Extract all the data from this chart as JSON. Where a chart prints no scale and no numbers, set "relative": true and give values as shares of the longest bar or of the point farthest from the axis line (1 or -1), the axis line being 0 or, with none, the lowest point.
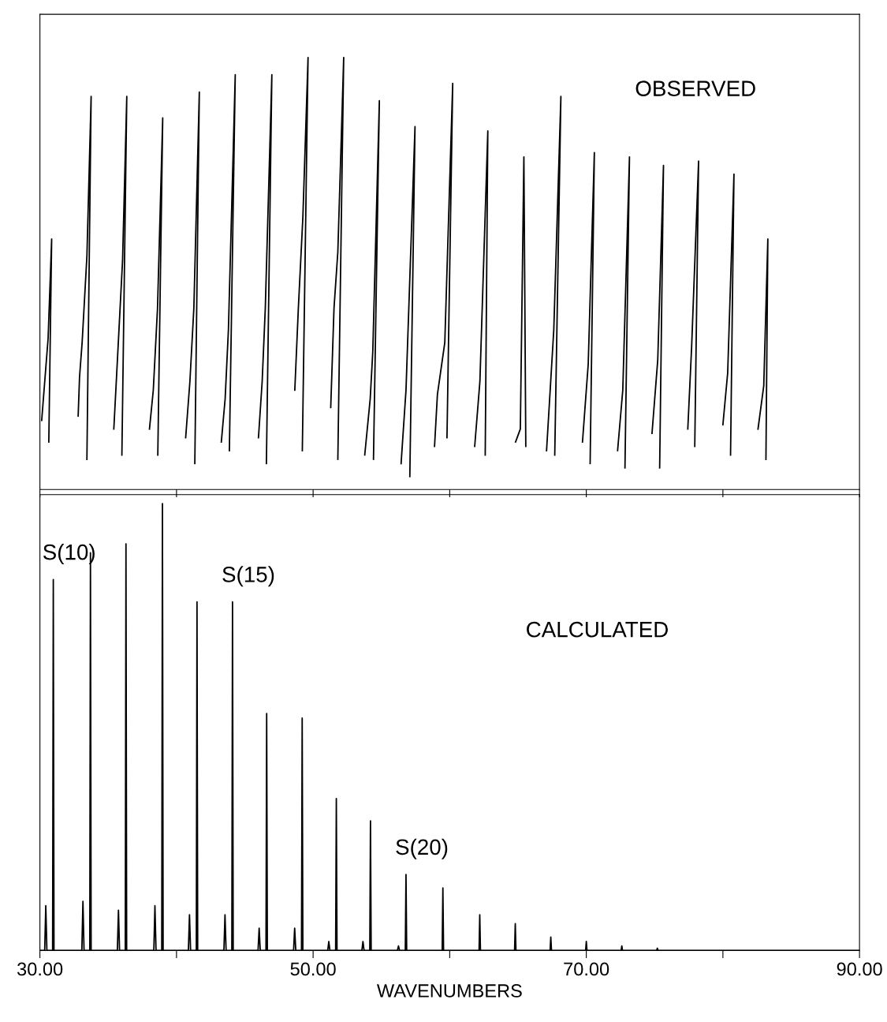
{
  "chart_data": [
    {
      "type": "line",
      "relative": true,
      "xlim": [
        30,
        90
      ],
      "xticks": [
        {
          "value": 30,
          "label": null
        },
        {
          "value": 40,
          "label": null
        },
        {
          "value": 50,
          "label": null
        },
        {
          "value": 60,
          "label": null
        },
        {
          "value": 70,
          "label": null
        },
        {
          "value": 80,
          "label": null
        },
        {
          "value": 90,
          "label": null
        }
      ],
      "tick_labels": false,
      "grid": false,
      "annotations": [
        "OBSERVED"
      ],
      "series": [
        {
          "color": "#000000",
          "x": [
            30.13,
            30.6,
            30.86,
            30.65
          ],
          "values": [
            0.16,
            0.35,
            0.58,
            0.11
          ]
        },
        {
          "color": "#000000",
          "x": [
            32.8,
            32.9,
            33.09,
            33.44,
            33.75,
            33.44
          ],
          "values": [
            0.17,
            0.26,
            0.34,
            0.54,
            0.91,
            0.07
          ]
        },
        {
          "color": "#000000",
          "x": [
            35.41,
            35.69,
            36.05,
            36.36,
            36.0
          ],
          "values": [
            0.14,
            0.31,
            0.53,
            0.91,
            0.08
          ]
        },
        {
          "color": "#000000",
          "x": [
            38.02,
            38.3,
            38.61,
            38.99,
            38.63
          ],
          "values": [
            0.14,
            0.23,
            0.42,
            0.86,
            0.08
          ]
        },
        {
          "color": "#000000",
          "x": [
            40.67,
            40.98,
            41.27,
            41.67,
            41.34
          ],
          "values": [
            0.12,
            0.25,
            0.42,
            0.92,
            0.06
          ]
        },
        {
          "color": "#000000",
          "x": [
            43.28,
            43.56,
            43.8,
            44.3,
            43.87
          ],
          "values": [
            0.11,
            0.21,
            0.37,
            0.96,
            0.09
          ]
        },
        {
          "color": "#000000",
          "x": [
            46.0,
            46.27,
            46.5,
            46.98,
            46.58
          ],
          "values": [
            0.12,
            0.25,
            0.42,
            0.96,
            0.06
          ]
        },
        {
          "color": "#000000",
          "x": [
            48.66,
            48.92,
            49.25,
            49.63,
            49.21
          ],
          "values": [
            0.23,
            0.42,
            0.63,
            1.0,
            0.09
          ]
        },
        {
          "color": "#000000",
          "x": [
            51.29,
            51.53,
            51.81,
            52.24,
            51.81
          ],
          "values": [
            0.19,
            0.42,
            0.55,
            1.0,
            0.07
          ]
        },
        {
          "color": "#000000",
          "x": [
            53.78,
            54.18,
            54.37,
            54.85,
            54.42
          ],
          "values": [
            0.08,
            0.21,
            0.32,
            0.9,
            0.07
          ]
        },
        {
          "color": "#000000",
          "x": [
            56.44,
            56.8,
            57.46,
            57.08
          ],
          "values": [
            0.06,
            0.23,
            0.84,
            0.03
          ]
        },
        {
          "color": "#000000",
          "x": [
            58.89,
            59.1,
            59.64,
            60.22,
            59.8
          ],
          "values": [
            0.1,
            0.22,
            0.34,
            0.94,
            0.12
          ]
        },
        {
          "color": "#000000",
          "x": [
            61.83,
            62.21,
            62.79,
            62.6
          ],
          "values": [
            0.1,
            0.25,
            0.83,
            0.08
          ]
        },
        {
          "color": "#000000",
          "x": [
            64.82,
            65.17,
            65.43,
            65.57
          ],
          "values": [
            0.11,
            0.14,
            0.77,
            0.1
          ]
        },
        {
          "color": "#000000",
          "x": [
            67.09,
            67.62,
            68.14,
            67.69
          ],
          "values": [
            0.09,
            0.37,
            0.91,
            0.08
          ]
        },
        {
          "color": "#000000",
          "x": [
            69.72,
            70.14,
            70.59,
            70.28
          ],
          "values": [
            0.11,
            0.29,
            0.78,
            0.06
          ]
        },
        {
          "color": "#000000",
          "x": [
            72.29,
            72.67,
            73.16,
            72.83
          ],
          "values": [
            0.09,
            0.23,
            0.77,
            0.05
          ]
        },
        {
          "color": "#000000",
          "x": [
            74.81,
            75.23,
            75.65,
            75.37
          ],
          "values": [
            0.13,
            0.3,
            0.75,
            0.05
          ]
        },
        {
          "color": "#000000",
          "x": [
            77.43,
            77.71,
            78.22,
            77.94
          ],
          "values": [
            0.14,
            0.33,
            0.76,
            0.1
          ]
        },
        {
          "color": "#000000",
          "x": [
            80.0,
            80.35,
            80.81,
            80.56
          ],
          "values": [
            0.15,
            0.27,
            0.73,
            0.08
          ]
        },
        {
          "color": "#000000",
          "x": [
            82.57,
            82.99,
            83.29,
            83.15
          ],
          "values": [
            0.14,
            0.24,
            0.58,
            0.07
          ]
        }
      ]
    },
    {
      "type": "line",
      "relative": true,
      "xlim": [
        30,
        90
      ],
      "xticks": [
        {
          "value": 30,
          "label": "30.00"
        },
        {
          "value": 40,
          "label": null
        },
        {
          "value": 50,
          "label": "50.00"
        },
        {
          "value": 60,
          "label": null
        },
        {
          "value": 70,
          "label": "70.00"
        },
        {
          "value": 80,
          "label": null
        },
        {
          "value": 90,
          "label": "90.00"
        }
      ],
      "tick_labels": "x",
      "grid": false,
      "xlabel": "WAVENUMBERS",
      "annotations": [
        "CALCULATED",
        {
          "text": "S(10)",
          "x": 30.98,
          "y": 0.83
        },
        {
          "text": "S(15)",
          "x": 44.1,
          "y": 0.78
        },
        {
          "text": "S(20)",
          "x": 56.8,
          "y": 0.17
        }
      ],
      "series": [
        {
          "color": "#000000",
          "x": [
            30.0,
            30.35,
            30.43,
            30.51,
            30.93,
            30.98,
            31.03,
            33.07,
            33.15,
            33.23,
            33.65,
            33.7,
            33.75,
            35.67,
            35.75,
            35.83,
            36.25,
            36.3,
            36.35,
            38.34,
            38.42,
            38.5,
            38.92,
            38.97,
            39.02,
            40.87,
            40.95,
            41.03,
            41.45,
            41.5,
            41.55,
            43.47,
            43.55,
            43.63,
            44.05,
            44.1,
            44.15,
            45.97,
            46.05,
            46.13,
            46.55,
            46.6,
            46.65,
            48.57,
            48.65,
            48.73,
            49.15,
            49.2,
            49.25,
            51.07,
            51.15,
            51.23,
            51.65,
            51.7,
            51.75,
            53.57,
            53.65,
            53.73,
            54.15,
            54.2,
            54.25,
            56.17,
            56.25,
            56.33,
            56.75,
            56.8,
            56.85,
            59.45,
            59.5,
            59.55,
            62.15,
            62.2,
            62.25,
            64.75,
            64.8,
            64.85,
            67.35,
            67.4,
            67.45,
            69.95,
            70.0,
            70.05,
            72.55,
            72.6,
            72.65,
            75.15,
            75.2,
            75.25,
            90.0
          ],
          "values": [
            0,
            0,
            0.1,
            0,
            0,
            0.83,
            0,
            0,
            0.11,
            0,
            0,
            0.89,
            0,
            0,
            0.09,
            0,
            0,
            0.91,
            0,
            0,
            0.1,
            0,
            0,
            1.0,
            0,
            0,
            0.08,
            0,
            0,
            0.78,
            0,
            0,
            0.08,
            0,
            0,
            0.78,
            0,
            0,
            0.05,
            0,
            0,
            0.53,
            0,
            0,
            0.05,
            0,
            0,
            0.52,
            0,
            0,
            0.02,
            0,
            0,
            0.34,
            0,
            0,
            0.02,
            0,
            0,
            0.29,
            0,
            0,
            0.01,
            0,
            0,
            0.17,
            0,
            0,
            0.14,
            0,
            0,
            0.08,
            0,
            0,
            0.06,
            0,
            0,
            0.03,
            0,
            0,
            0.02,
            0,
            0,
            0.01,
            0,
            0,
            0.005,
            0,
            0
          ]
        }
      ]
    }
  ]
}
